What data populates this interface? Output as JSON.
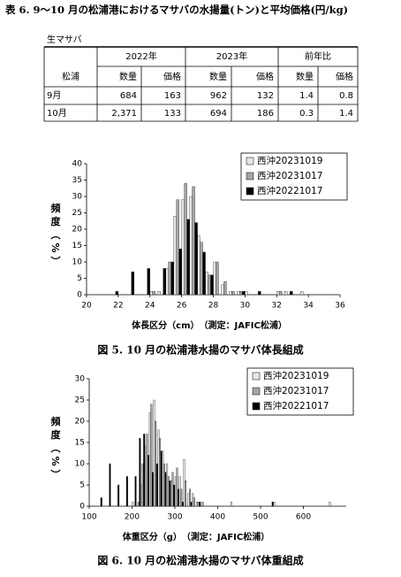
{
  "header": {
    "title": "表 6. 9～10 月の松浦港におけるマサバの水揚量(トン)と平均価格(円/kg)",
    "subtitle": "生マサバ"
  },
  "table": {
    "row_label": "松浦",
    "groups": [
      "2022年",
      "2023年",
      "前年比"
    ],
    "subheaders": [
      "数量",
      "価格",
      "数量",
      "価格",
      "数量",
      "価格"
    ],
    "rows": [
      {
        "label": "9月",
        "cells": [
          "684",
          "163",
          "962",
          "132",
          "1.4",
          "0.8"
        ]
      },
      {
        "label": "10月",
        "cells": [
          "2,371",
          "133",
          "694",
          "186",
          "0.3",
          "1.4"
        ]
      }
    ]
  },
  "chart_data": [
    {
      "type": "histogram",
      "caption": "図 5. 10 月の松浦港水揚のマサバ体長組成",
      "xlabel": "体長区分（cm）　（測定：JAFIC松浦）",
      "ylabel": "頻度（%）",
      "bins": [
        21.5,
        22,
        22.5,
        23,
        23.5,
        24,
        24.5,
        25,
        25.5,
        26,
        26.5,
        27,
        27.5,
        28,
        28.5,
        29,
        29.5,
        30,
        30.5,
        31,
        31.5,
        32,
        32.5,
        33,
        33.5,
        34
      ],
      "series": [
        {
          "name": "西沖20231019",
          "color": "#e6e6e6",
          "values": [
            0,
            0,
            0,
            0,
            0,
            1,
            1,
            8,
            24,
            29,
            30,
            18,
            7,
            10,
            3,
            1,
            1,
            1,
            0,
            0,
            0,
            1,
            1,
            0,
            1
          ]
        },
        {
          "name": "西沖20231017",
          "color": "#a6a6a6",
          "values": [
            0,
            0,
            0,
            0,
            0,
            1,
            0,
            10,
            29,
            34,
            33,
            16,
            6,
            10,
            4,
            1,
            1,
            0,
            0,
            0,
            0,
            1,
            0,
            0,
            0
          ]
        },
        {
          "name": "西沖20221017",
          "color": "#000000",
          "values": [
            1,
            0,
            7,
            0,
            8,
            0,
            8,
            10,
            14,
            23,
            22,
            13,
            6,
            0,
            0,
            0,
            1,
            0,
            1,
            0,
            0,
            0,
            1,
            0,
            0
          ]
        }
      ],
      "xlim": [
        20,
        36
      ],
      "xticks": [
        20,
        22,
        24,
        26,
        28,
        30,
        32,
        34,
        36
      ],
      "ylim": [
        0,
        40
      ],
      "yticks": [
        0,
        5,
        10,
        15,
        20,
        25,
        30,
        35,
        40
      ],
      "legend": "upper right"
    },
    {
      "type": "histogram",
      "caption": "図 6. 10 月の松浦港水揚のマサバ体重組成",
      "xlabel": "体重区分（g）　（測定：JAFIC松浦）",
      "ylabel": "頻度（%）",
      "bins": [
        120,
        130,
        140,
        150,
        160,
        170,
        180,
        190,
        200,
        210,
        220,
        230,
        240,
        250,
        260,
        270,
        280,
        290,
        300,
        310,
        320,
        330,
        340,
        350,
        360,
        370,
        380,
        390,
        400,
        410,
        420,
        430,
        440,
        450,
        460,
        470,
        480,
        490,
        500,
        510,
        520,
        530,
        540,
        550,
        560,
        570,
        580,
        590,
        600,
        610,
        620,
        630,
        640,
        650,
        660,
        670
      ],
      "series": [
        {
          "name": "西沖20231019",
          "color": "#e6e6e6",
          "values": [
            0,
            0,
            0,
            0,
            0,
            0,
            0,
            0,
            1,
            0,
            5,
            14,
            22,
            25,
            18,
            13,
            10,
            6,
            7,
            7,
            11,
            3,
            3,
            1,
            0,
            0,
            0,
            0,
            0,
            0,
            0,
            1,
            0,
            0,
            0,
            0,
            0,
            0,
            0,
            0,
            0,
            1,
            0,
            0,
            0,
            0,
            0,
            0,
            0,
            0,
            0,
            0,
            0,
            0,
            1
          ]
        },
        {
          "name": "西沖20231017",
          "color": "#a6a6a6",
          "values": [
            0,
            0,
            0,
            0,
            0,
            0,
            0,
            0,
            0,
            1,
            10,
            17,
            24,
            20,
            16,
            10,
            7,
            8,
            9,
            4,
            6,
            4,
            2,
            1,
            1,
            0,
            0,
            0,
            0,
            0,
            0,
            0,
            0,
            0,
            0,
            0,
            0,
            0,
            0,
            0,
            0,
            0,
            0,
            0,
            0,
            0,
            0,
            0,
            0,
            0,
            0,
            0,
            0,
            0,
            0
          ]
        },
        {
          "name": "西沖20221017",
          "color": "#000000",
          "values": [
            2,
            0,
            10,
            0,
            5,
            0,
            7,
            0,
            7,
            16,
            17,
            12,
            8,
            10,
            13,
            8,
            6,
            5,
            4,
            1,
            0,
            1,
            0,
            1,
            0,
            0,
            0,
            0,
            0,
            0,
            0,
            0,
            0,
            0,
            0,
            0,
            0,
            0,
            0,
            0,
            1,
            0,
            0,
            0,
            0,
            0,
            0,
            0,
            0,
            0,
            0,
            0,
            0,
            0,
            0
          ]
        }
      ],
      "xlim": [
        100,
        700
      ],
      "xticks": [
        100,
        200,
        300,
        400,
        500,
        600
      ],
      "ylim": [
        0,
        30
      ],
      "yticks": [
        0,
        5,
        10,
        15,
        20,
        25,
        30
      ],
      "legend": "upper right"
    }
  ]
}
